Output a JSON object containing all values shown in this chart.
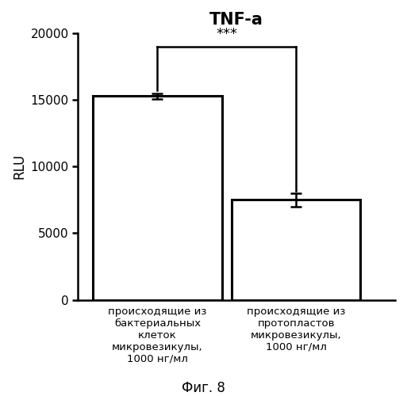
{
  "title": "TNF-a",
  "ylabel": "RLU",
  "categories": [
    "происходящие из\nбактериальных\nклеток\nмикровезикулы,\n1000 нг/мл",
    "происходящие из\nпротопластов\nмикровезикулы,\n1000 нг/мл"
  ],
  "values": [
    15300,
    7500
  ],
  "errors": [
    200,
    500
  ],
  "bar_colors": [
    "#ffffff",
    "#ffffff"
  ],
  "bar_edgecolors": [
    "#000000",
    "#000000"
  ],
  "bar_linewidth": 2.2,
  "bar_width": 0.65,
  "bar_positions": [
    0.3,
    1.0
  ],
  "xlim": [
    -0.1,
    1.5
  ],
  "ylim": [
    0,
    20000
  ],
  "yticks": [
    0,
    5000,
    10000,
    15000,
    20000
  ],
  "significance_text": "***",
  "significance_y": 19400,
  "bracket_y": 19000,
  "bracket_left_tip_y": 15700,
  "bracket_right_tip_y": 8200,
  "capsize": 5,
  "elinewidth": 1.8,
  "ecapthick": 1.8,
  "fig_caption": "Фиг. 8",
  "background_color": "#ffffff",
  "title_fontsize": 15,
  "title_fontweight": "bold",
  "ylabel_fontsize": 12,
  "tick_fontsize": 11,
  "xtick_fontsize": 9.5,
  "caption_fontsize": 12,
  "bracket_lw": 1.8
}
